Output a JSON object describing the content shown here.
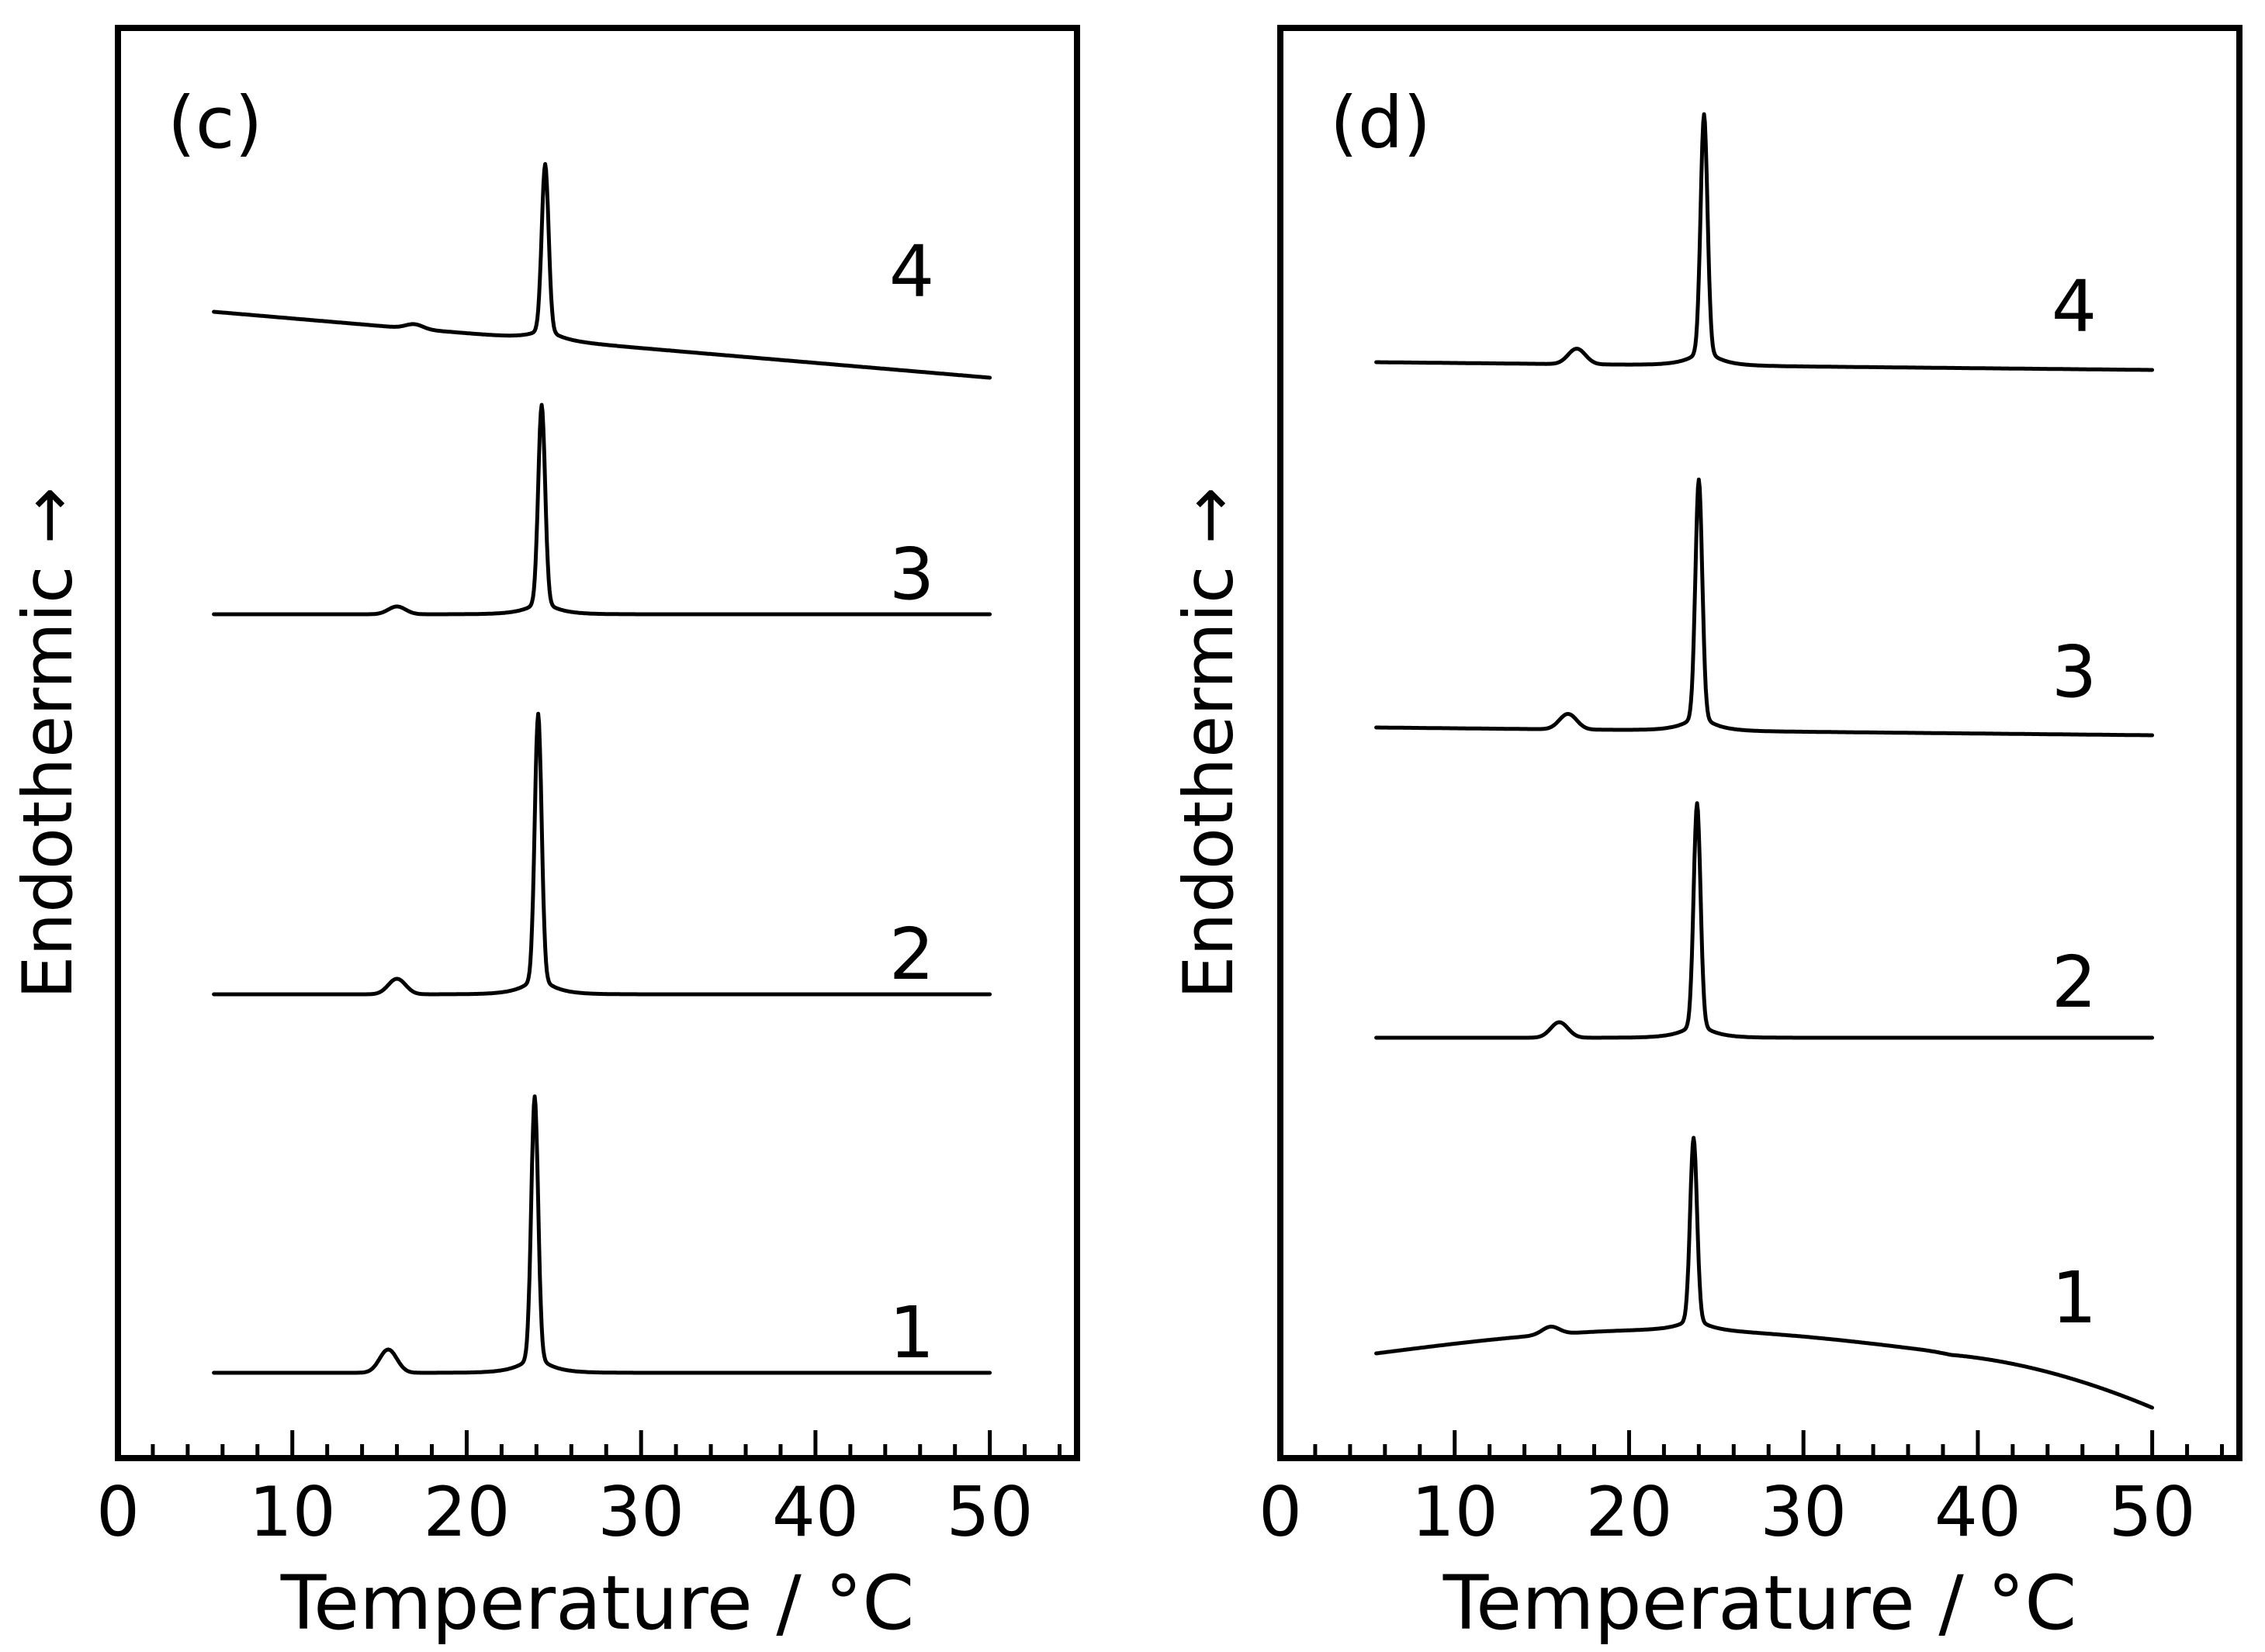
{
  "chart_data": [
    {
      "type": "line",
      "panel_label": "(c)",
      "xlabel": "Temperature / °C",
      "ylabel": "Endothermic →",
      "xlim": [
        0,
        55
      ],
      "xticks": [
        0,
        10,
        20,
        30,
        40,
        50
      ],
      "x_minor_step": 2,
      "grid": false,
      "series": [
        {
          "name": "4",
          "baseline_start": 0,
          "baseline_end": -0.17,
          "peak_temp": 24.5,
          "peak_height": 0.42,
          "small_peak_temp": 17,
          "small_peak_height": 0.006
        },
        {
          "name": "3",
          "baseline_start": 0,
          "baseline_end": 0,
          "peak_temp": 24.3,
          "peak_height": 0.5,
          "small_peak_temp": 16,
          "small_peak_height": 0.01
        },
        {
          "name": "2",
          "baseline_start": 0,
          "baseline_end": 0,
          "peak_temp": 24.1,
          "peak_height": 0.67,
          "small_peak_temp": 16,
          "small_peak_height": 0.02
        },
        {
          "name": "1",
          "baseline_start": 0,
          "baseline_end": 0,
          "peak_temp": 23.9,
          "peak_height": 0.66,
          "small_peak_temp": 15.5,
          "small_peak_height": 0.03
        }
      ]
    },
    {
      "type": "line",
      "panel_label": "(d)",
      "xlabel": "Temperature / °C",
      "ylabel": "Endothermic →",
      "xlim": [
        0,
        55
      ],
      "xticks": [
        0,
        10,
        20,
        30,
        40,
        50
      ],
      "x_minor_step": 2,
      "grid": false,
      "series": [
        {
          "name": "4",
          "baseline_start": 0,
          "baseline_end": -0.02,
          "peak_temp": 24.3,
          "peak_height": 0.6,
          "small_peak_temp": 17,
          "small_peak_height": 0.02
        },
        {
          "name": "3",
          "baseline_start": 0,
          "baseline_end": -0.02,
          "peak_temp": 24.0,
          "peak_height": 0.6,
          "small_peak_temp": 16.5,
          "small_peak_height": 0.02
        },
        {
          "name": "2",
          "baseline_start": 0,
          "baseline_end": 0,
          "peak_temp": 23.9,
          "peak_height": 0.56,
          "small_peak_temp": 16,
          "small_peak_height": 0.02
        },
        {
          "name": "1",
          "baseline_start": 0,
          "baseline_end": -0.14,
          "peak_temp": 23.7,
          "peak_height": 0.46,
          "small_peak_temp": 15.5,
          "small_peak_height": 0.01,
          "curved_baseline": true
        }
      ]
    }
  ]
}
